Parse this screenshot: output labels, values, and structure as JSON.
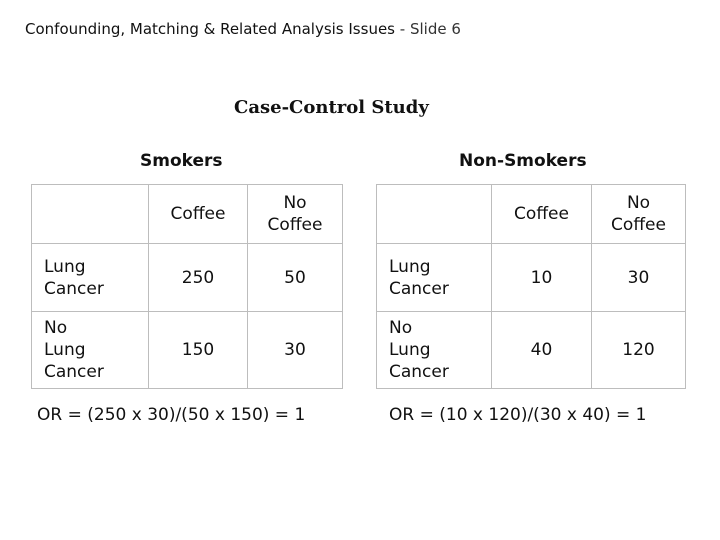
{
  "slide": {
    "header_title": "Confounding, Matching & Related Analysis Issues",
    "header_suffix": "- Slide 6",
    "main_title": "Case-Control Study"
  },
  "tables": [
    {
      "title": "Smokers",
      "col_headers": [
        "Coffee",
        "No\nCoffee"
      ],
      "rows": [
        {
          "label": "Lung\nCancer",
          "values": [
            "250",
            "50"
          ]
        },
        {
          "label": "No\nLung\nCancer",
          "values": [
            "150",
            "30"
          ]
        }
      ],
      "or_text": "OR = (250 x 30)/(50 x 150) = 1"
    },
    {
      "title": "Non-Smokers",
      "col_headers": [
        "Coffee",
        "No\nCoffee"
      ],
      "rows": [
        {
          "label": "Lung\nCancer",
          "values": [
            "10",
            "30"
          ]
        },
        {
          "label": "No\nLung\nCancer",
          "values": [
            "40",
            "120"
          ]
        }
      ],
      "or_text": "OR = (10 x 120)/(30 x 40) = 1"
    }
  ]
}
